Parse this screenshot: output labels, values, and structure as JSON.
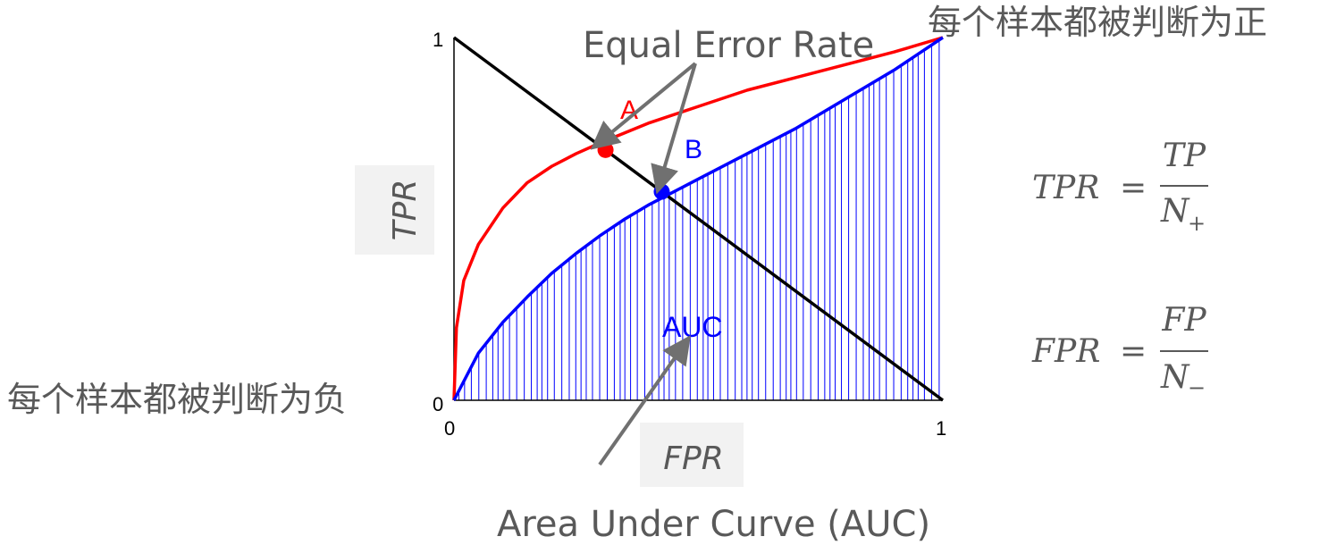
{
  "annotations": {
    "top_right": "每个样本都被判断为正",
    "bottom_left": "每个样本都被判断为负",
    "equal_error_rate": "Equal Error Rate",
    "auc_caption": "Area Under Curve (AUC)"
  },
  "formulas": {
    "tpr": {
      "lhs": "TPR",
      "eq": "=",
      "num": "TP",
      "den": "N",
      "den_sub": "+"
    },
    "fpr": {
      "lhs": "FPR",
      "eq": "=",
      "num": "FP",
      "den": "N",
      "den_sub": "−"
    }
  },
  "colors": {
    "curve_a": "#ff0000",
    "curve_b": "#0000ff",
    "diagonal": "#000000",
    "annotation": "#595959"
  },
  "chart_data": {
    "type": "line",
    "xlabel": "FPR",
    "ylabel": "TPR",
    "xlim": [
      0,
      1
    ],
    "ylim": [
      0,
      1
    ],
    "x_ticks": [
      "0",
      "1"
    ],
    "y_ticks": [
      "0",
      "1"
    ],
    "grid": false,
    "series": [
      {
        "name": "A",
        "color": "#ff0000",
        "x": [
          0,
          0.005,
          0.02,
          0.05,
          0.1,
          0.15,
          0.2,
          0.25,
          0.3,
          0.4,
          0.5,
          0.6,
          0.7,
          0.8,
          0.9,
          1.0
        ],
        "y": [
          0,
          0.2,
          0.33,
          0.43,
          0.53,
          0.6,
          0.645,
          0.68,
          0.71,
          0.765,
          0.81,
          0.855,
          0.89,
          0.925,
          0.96,
          1.0
        ]
      },
      {
        "name": "B",
        "color": "#0000ff",
        "fill": "hatched",
        "x": [
          0,
          0.05,
          0.1,
          0.15,
          0.2,
          0.25,
          0.3,
          0.35,
          0.4,
          0.45,
          0.5,
          0.6,
          0.7,
          0.8,
          0.9,
          1.0
        ],
        "y": [
          0,
          0.13,
          0.215,
          0.285,
          0.35,
          0.405,
          0.455,
          0.5,
          0.54,
          0.575,
          0.61,
          0.68,
          0.75,
          0.83,
          0.91,
          1.0
        ]
      },
      {
        "name": "",
        "color": "#000000",
        "x": [
          0,
          1
        ],
        "y": [
          1,
          0
        ]
      }
    ],
    "points": [
      {
        "series": "A",
        "x": 0.31,
        "y": 0.69
      },
      {
        "series": "B",
        "x": 0.425,
        "y": 0.575
      }
    ],
    "region_label": "AUC"
  }
}
